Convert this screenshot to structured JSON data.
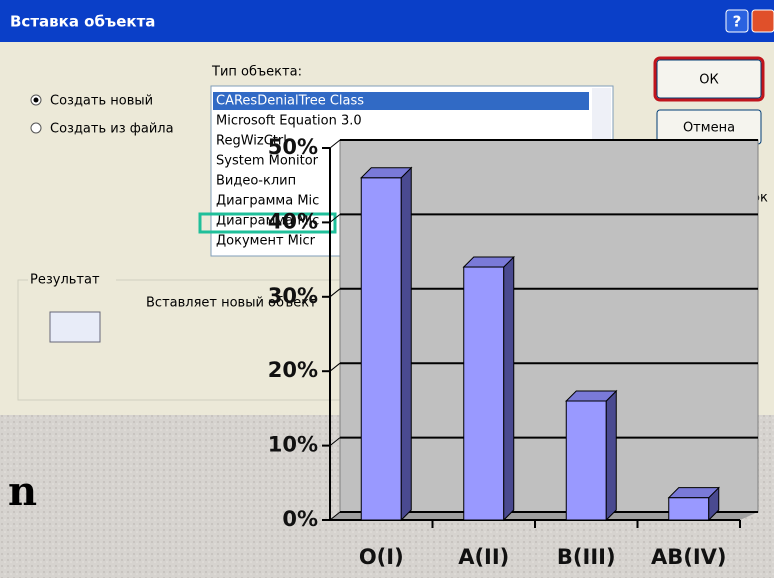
{
  "dialog": {
    "title": "Вставка объекта",
    "object_type_label": "Тип объекта:",
    "options": [
      "Создать новый",
      "Создать из файла"
    ],
    "object_types": [
      "CAResDenialTree Class",
      "Microsoft Equation 3.0",
      "RegWizCtrl",
      "System Monitor",
      "Видео-клип",
      "Диаграмма Mic",
      "Диаграмма Mic",
      "Документ Micr"
    ],
    "buttons": [
      "ОК",
      "Отмена"
    ],
    "icon_checkbox": "ок",
    "result_label": "Результат",
    "result_text": "Вставляет новый объект"
  },
  "slide_text": "n",
  "chart_data": {
    "type": "bar",
    "categories": [
      "O(I)",
      "A(II)",
      "B(III)",
      "AB(IV)"
    ],
    "values": [
      46,
      34,
      16,
      3
    ],
    "color": "#9999ff",
    "ylim": [
      0,
      50
    ],
    "yticks": [
      {
        "value": 0,
        "label": "0%"
      },
      {
        "value": 10,
        "label": "10%"
      },
      {
        "value": 20,
        "label": "20%"
      },
      {
        "value": 30,
        "label": "30%"
      },
      {
        "value": 40,
        "label": "40%"
      },
      {
        "value": 50,
        "label": "50%"
      }
    ],
    "grid": true
  }
}
